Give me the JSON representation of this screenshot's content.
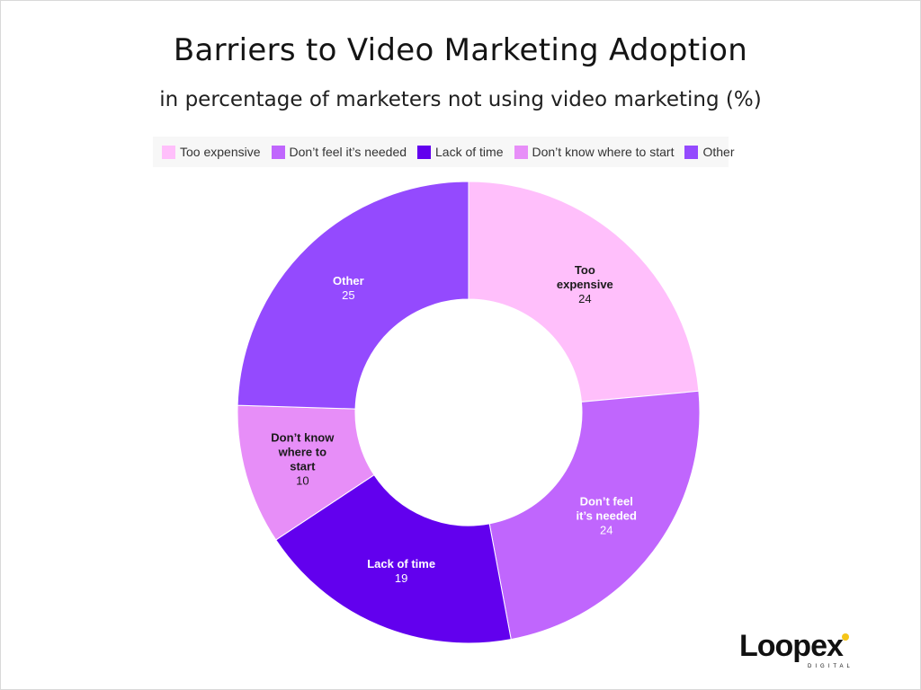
{
  "chart_data": {
    "type": "pie",
    "title": "Barriers to Video Marketing Adoption",
    "subtitle": "in percentage of marketers not using video marketing (%)",
    "legend_placement": "top",
    "donut": true,
    "slices": [
      {
        "name": "Too expensive",
        "label_lines": [
          "Too",
          "expensive"
        ],
        "value": 24,
        "color": "#ffbffb",
        "label_color": "dark"
      },
      {
        "name": "Don’t feel it’s needed",
        "label_lines": [
          "Don’t feel",
          "it’s needed"
        ],
        "value": 24,
        "color": "#c066fd",
        "label_color": "light"
      },
      {
        "name": "Lack of time",
        "label_lines": [
          "Lack of time"
        ],
        "value": 19,
        "color": "#6200ee",
        "label_color": "light"
      },
      {
        "name": "Don’t know where to start",
        "label_lines": [
          "Don’t know",
          "where to",
          "start"
        ],
        "value": 10,
        "color": "#e78ef8",
        "label_color": "dark"
      },
      {
        "name": "Other",
        "label_lines": [
          "Other"
        ],
        "value": 25,
        "color": "#944afe",
        "label_color": "light"
      }
    ]
  },
  "legend": {
    "items": [
      {
        "label": "Too expensive",
        "color": "#ffbffb"
      },
      {
        "label": "Don’t feel it’s needed",
        "color": "#c066fd"
      },
      {
        "label": "Lack of time",
        "color": "#6200ee"
      },
      {
        "label": "Don’t know where to start",
        "color": "#e78ef8"
      },
      {
        "label": "Other",
        "color": "#944afe"
      }
    ]
  },
  "logo": {
    "text": "Loopex",
    "subtext": "DIGITAL",
    "accent": "#f5c518"
  }
}
